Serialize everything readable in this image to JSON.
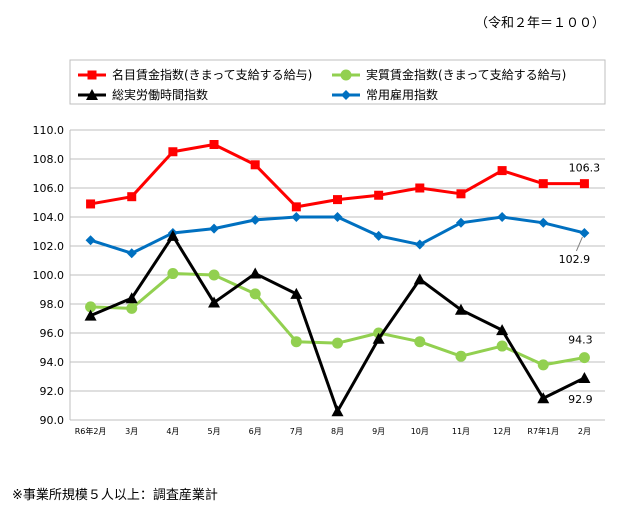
{
  "base_note": "（令和２年＝１００）",
  "footnote": "※事業所規模５人以上：調査産業計",
  "chart_data": {
    "type": "line",
    "categories": [
      "R6年2月",
      "3月",
      "4月",
      "5月",
      "6月",
      "7月",
      "8月",
      "9月",
      "10月",
      "11月",
      "12月",
      "R7年1月",
      "2月"
    ],
    "ylim": [
      90.0,
      110.0
    ],
    "yticks": [
      "90.0",
      "92.0",
      "94.0",
      "96.0",
      "98.0",
      "100.0",
      "102.0",
      "104.0",
      "106.0",
      "108.0",
      "110.0"
    ],
    "grid": true,
    "legend_position": "top",
    "series": [
      {
        "name": "名目賃金指数(きまって支給する給与)",
        "color": "#ff0000",
        "marker": "square",
        "values": [
          104.9,
          105.4,
          108.5,
          109.0,
          107.6,
          104.7,
          105.2,
          105.5,
          106.0,
          105.6,
          107.2,
          106.3,
          106.3
        ],
        "end_label": "106.3"
      },
      {
        "name": "実質賃金指数(きまって支給する給与)",
        "color": "#92d050",
        "marker": "circle",
        "values": [
          97.8,
          97.7,
          100.1,
          100.0,
          98.7,
          95.4,
          95.3,
          96.0,
          95.4,
          94.4,
          95.1,
          93.8,
          94.3
        ],
        "end_label": "94.3"
      },
      {
        "name": "総実労働時間指数",
        "color": "#000000",
        "marker": "triangle",
        "values": [
          97.2,
          98.4,
          102.7,
          98.1,
          100.1,
          98.7,
          90.6,
          95.6,
          99.7,
          97.6,
          96.2,
          91.5,
          92.9
        ],
        "end_label": "92.9"
      },
      {
        "name": "常用雇用指数",
        "color": "#0070c0",
        "marker": "diamond",
        "values": [
          102.4,
          101.5,
          102.9,
          103.2,
          103.8,
          104.0,
          104.0,
          102.7,
          102.1,
          103.6,
          104.0,
          103.6,
          102.9
        ],
        "end_label": "102.9"
      }
    ]
  }
}
